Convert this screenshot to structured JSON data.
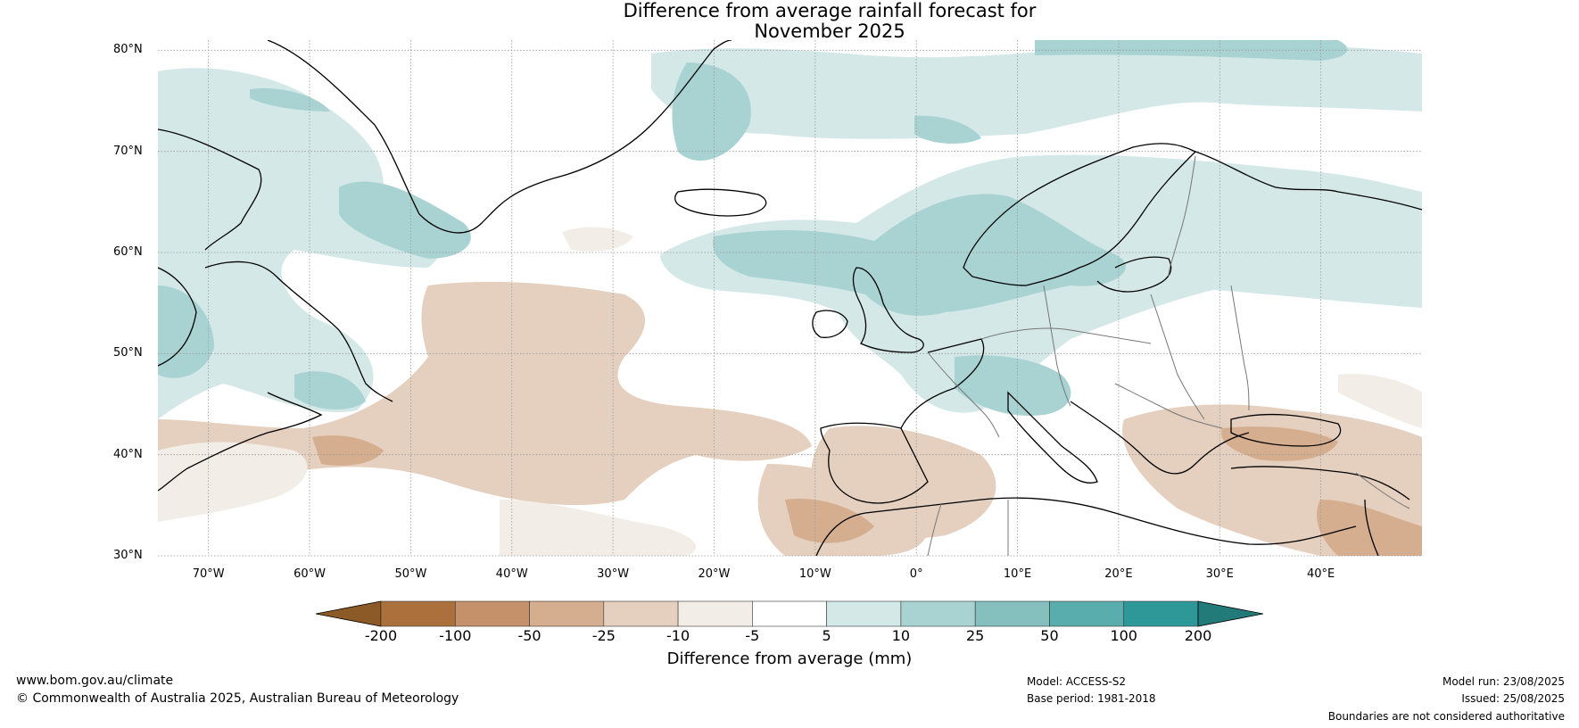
{
  "title_line1": "Difference from average rainfall forecast for",
  "title_line2": "November 2025",
  "map": {
    "lat_labels": [
      "80°N",
      "70°N",
      "60°N",
      "50°N",
      "40°N",
      "30°N"
    ],
    "lon_labels": [
      "70°W",
      "60°W",
      "50°W",
      "40°W",
      "30°W",
      "20°W",
      "10°W",
      "0°",
      "10°E",
      "20°E",
      "30°E",
      "40°E"
    ],
    "extent": {
      "lon_min": -75,
      "lon_max": 50,
      "lat_min": 30,
      "lat_max": 81
    }
  },
  "colorbar": {
    "tick_labels": [
      "-200",
      "-100",
      "-50",
      "-25",
      "-10",
      "-5",
      "5",
      "10",
      "25",
      "50",
      "100",
      "200"
    ],
    "colors": [
      "#8c5a26",
      "#ab703c",
      "#c4916a",
      "#d4ae8e",
      "#e5d0bf",
      "#f2ede6",
      "#ffffff",
      "#d4e8e7",
      "#a9d3d3",
      "#85c0bf",
      "#5aadad",
      "#2e9898",
      "#227a79"
    ],
    "label": "Difference from average (mm)"
  },
  "footer": {
    "url": "www.bom.gov.au/climate",
    "copyright": "© Commonwealth of Australia 2025, Australian Bureau of Meteorology",
    "model": "Model: ACCESS-S2",
    "base_period": "Base period: 1981-2018",
    "model_run": "Model run: 23/08/2025",
    "issued": "Issued: 25/08/2025",
    "disclaimer": "Boundaries are not considered authoritative"
  }
}
